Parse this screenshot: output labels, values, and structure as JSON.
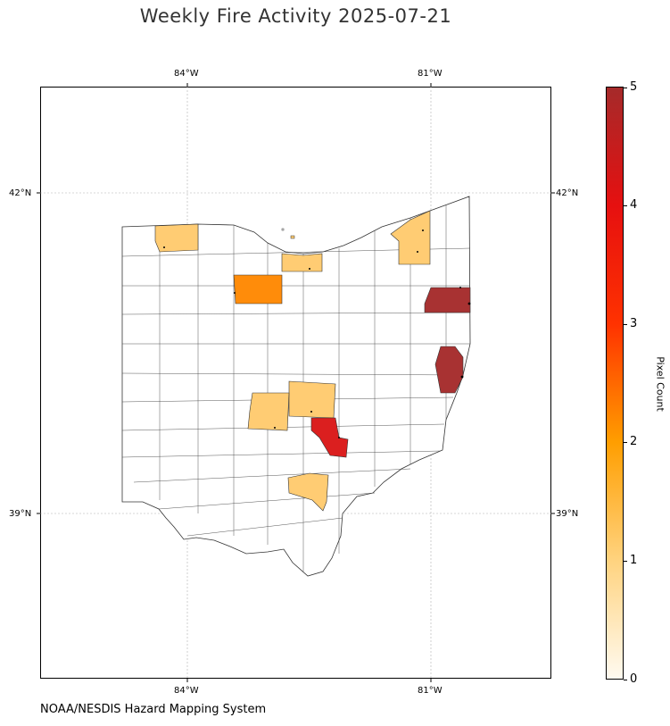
{
  "title": "Weekly Fire Activity 2025-07-21",
  "source": "NOAA/NESDIS Hazard Mapping System",
  "axes": {
    "lon_ticks": [
      "84°W",
      "81°W"
    ],
    "lat_ticks": [
      "42°N",
      "39°N"
    ]
  },
  "colorbar": {
    "label": "Pixel Count",
    "ticks": [
      "0",
      "1",
      "2",
      "3",
      "4",
      "5"
    ],
    "min": 0,
    "max": 5
  },
  "colors": {
    "count_0": "#ffffff",
    "count_1": "#ffcc73",
    "count_2": "#ff8c0a",
    "count_4": "#db1f1f",
    "count_5": "#a83232"
  },
  "map_data": {
    "region": "Ohio",
    "layer": "county pixel counts"
  }
}
